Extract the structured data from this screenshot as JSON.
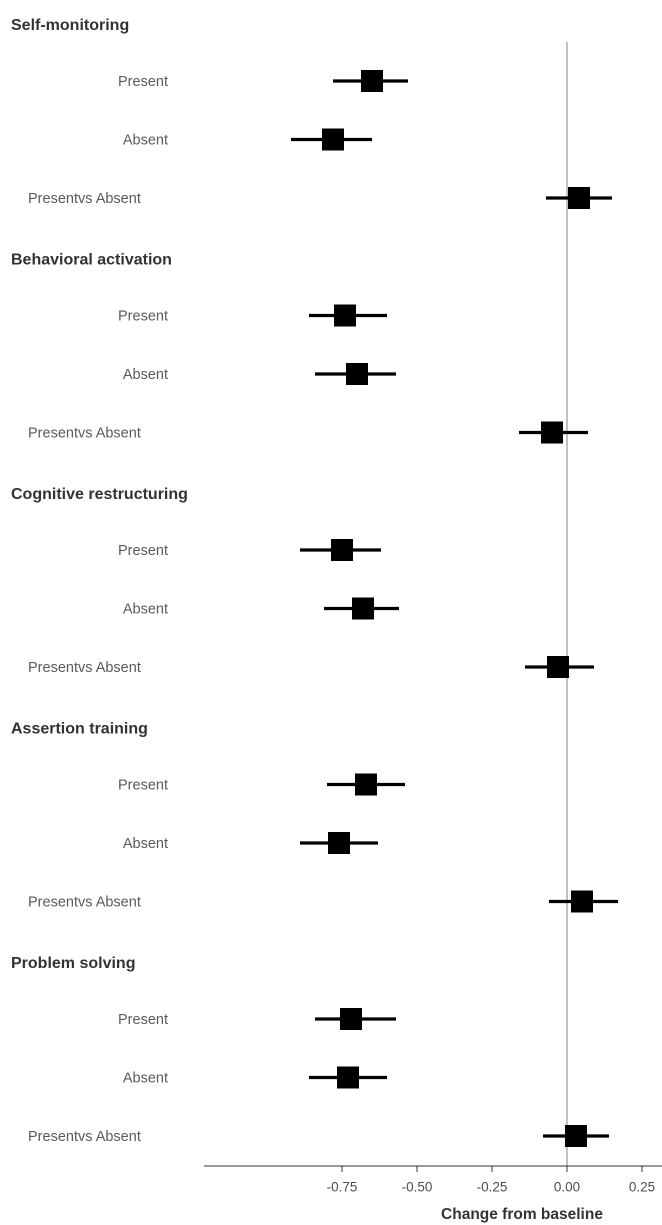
{
  "chart_data": {
    "type": "forest",
    "xlabel": "Change from baseline",
    "xticks": [
      -0.75,
      -0.5,
      -0.25,
      0.0,
      0.25
    ],
    "xtick_labels": [
      "-0.75",
      "-0.50",
      "-0.25",
      "0.00",
      "0.25"
    ],
    "xlim": [
      -1.2,
      0.32
    ],
    "reference_line": 0,
    "groups": [
      {
        "title": "Self-monitoring",
        "rows": [
          {
            "label": "Present",
            "estimate": -0.65,
            "lower": -0.78,
            "upper": -0.53
          },
          {
            "label": "Absent",
            "estimate": -0.78,
            "lower": -0.92,
            "upper": -0.65
          },
          {
            "label": "Presentvs Absent",
            "estimate": 0.04,
            "lower": -0.07,
            "upper": 0.15
          }
        ]
      },
      {
        "title": "Behavioral activation",
        "rows": [
          {
            "label": "Present",
            "estimate": -0.74,
            "lower": -0.86,
            "upper": -0.6
          },
          {
            "label": "Absent",
            "estimate": -0.7,
            "lower": -0.84,
            "upper": -0.57
          },
          {
            "label": "Presentvs Absent",
            "estimate": -0.05,
            "lower": -0.16,
            "upper": 0.07
          }
        ]
      },
      {
        "title": "Cognitive restructuring",
        "rows": [
          {
            "label": "Present",
            "estimate": -0.75,
            "lower": -0.89,
            "upper": -0.62
          },
          {
            "label": "Absent",
            "estimate": -0.68,
            "lower": -0.81,
            "upper": -0.56
          },
          {
            "label": "Presentvs Absent",
            "estimate": -0.03,
            "lower": -0.14,
            "upper": 0.09
          }
        ]
      },
      {
        "title": "Assertion  training",
        "rows": [
          {
            "label": "Present",
            "estimate": -0.67,
            "lower": -0.8,
            "upper": -0.54
          },
          {
            "label": "Absent",
            "estimate": -0.76,
            "lower": -0.89,
            "upper": -0.63
          },
          {
            "label": "Presentvs Absent",
            "estimate": 0.05,
            "lower": -0.06,
            "upper": 0.17
          }
        ]
      },
      {
        "title": "Problem solving",
        "rows": [
          {
            "label": "Present",
            "estimate": -0.72,
            "lower": -0.84,
            "upper": -0.57
          },
          {
            "label": "Absent",
            "estimate": -0.73,
            "lower": -0.86,
            "upper": -0.6
          },
          {
            "label": "Presentvs Absent",
            "estimate": 0.03,
            "lower": -0.08,
            "upper": 0.14
          }
        ]
      }
    ],
    "colors": {
      "marker": "#000000",
      "ci_line": "#000000",
      "reference_line": "#808080",
      "axis_line": "#333333"
    },
    "grid": false,
    "legend": "none"
  }
}
